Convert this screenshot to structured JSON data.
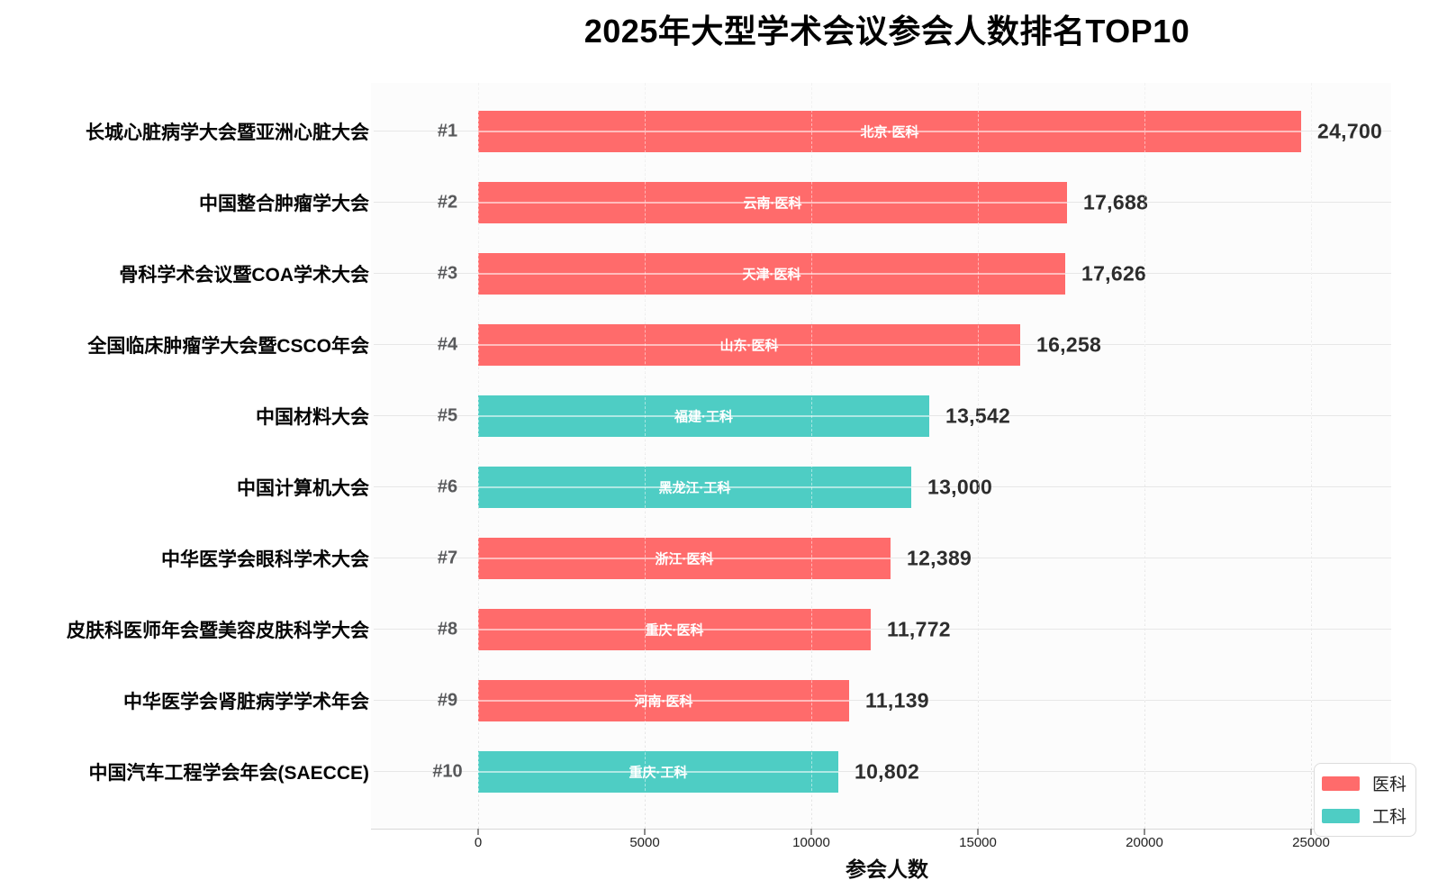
{
  "title": "2025年大型学术会议参会人数排名TOP10",
  "colors": {
    "medical": "#FF6B6B",
    "engineering": "#4ECDC4",
    "grid": "#e7e7e7",
    "axis_line": "#d8d8d8",
    "value_text": "#2d2d2d",
    "rank_text": "#58595b"
  },
  "chart_data": {
    "type": "bar",
    "orientation": "horizontal",
    "title": "2025年大型学术会议参会人数排名TOP10",
    "xlabel": "参会人数",
    "ylabel": "",
    "xlim": [
      0,
      27500
    ],
    "xticks": [
      0,
      5000,
      10000,
      15000,
      20000,
      25000
    ],
    "xtick_labels": [
      "0",
      "5000",
      "10000",
      "15000",
      "20000",
      "25000"
    ],
    "grid": true,
    "legend_position": "lower right",
    "legend": [
      {
        "label": "医科",
        "color": "#FF6B6B"
      },
      {
        "label": "工科",
        "color": "#4ECDC4"
      }
    ],
    "bars": [
      {
        "rank": "#1",
        "name": "长城心脏病学大会暨亚洲心脏大会",
        "region_label": "北京·医科",
        "category": "医科",
        "value": 24700,
        "value_label": "24,700"
      },
      {
        "rank": "#2",
        "name": "中国整合肿瘤学大会",
        "region_label": "云南·医科",
        "category": "医科",
        "value": 17688,
        "value_label": "17,688"
      },
      {
        "rank": "#3",
        "name": "骨科学术会议暨COA学术大会",
        "region_label": "天津·医科",
        "category": "医科",
        "value": 17626,
        "value_label": "17,626"
      },
      {
        "rank": "#4",
        "name": "全国临床肿瘤学大会暨CSCO年会",
        "region_label": "山东·医科",
        "category": "医科",
        "value": 16258,
        "value_label": "16,258"
      },
      {
        "rank": "#5",
        "name": "中国材料大会",
        "region_label": "福建·工科",
        "category": "工科",
        "value": 13542,
        "value_label": "13,542"
      },
      {
        "rank": "#6",
        "name": "中国计算机大会",
        "region_label": "黑龙江·工科",
        "category": "工科",
        "value": 13000,
        "value_label": "13,000"
      },
      {
        "rank": "#7",
        "name": "中华医学会眼科学术大会",
        "region_label": "浙江·医科",
        "category": "医科",
        "value": 12389,
        "value_label": "12,389"
      },
      {
        "rank": "#8",
        "name": "皮肤科医师年会暨美容皮肤科学大会",
        "region_label": "重庆·医科",
        "category": "医科",
        "value": 11772,
        "value_label": "11,772"
      },
      {
        "rank": "#9",
        "name": "中华医学会肾脏病学学术年会",
        "region_label": "河南·医科",
        "category": "医科",
        "value": 11139,
        "value_label": "11,139"
      },
      {
        "rank": "#10",
        "name": "中国汽车工程学会年会(SAECCE)",
        "region_label": "重庆·工科",
        "category": "工科",
        "value": 10802,
        "value_label": "10,802"
      }
    ]
  }
}
